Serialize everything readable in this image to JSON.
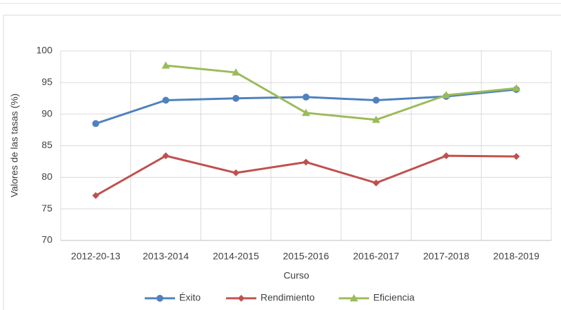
{
  "chart_data": {
    "type": "line",
    "xlabel": "Curso",
    "ylabel": "Valores de las tasas (%)",
    "categories": [
      "2012-20-13",
      "2013-2014",
      "2014-2015",
      "2015-2016",
      "2016-2017",
      "2017-2018",
      "2018-2019"
    ],
    "series": [
      {
        "name": "Éxito",
        "color": "#4f81bd",
        "marker": "circle",
        "values": [
          88.5,
          92.2,
          92.5,
          92.7,
          92.2,
          92.8,
          93.9
        ]
      },
      {
        "name": "Rendimiento",
        "color": "#c0504d",
        "marker": "diamond",
        "values": [
          77.1,
          83.4,
          80.7,
          82.4,
          79.1,
          83.4,
          83.3
        ]
      },
      {
        "name": "Eficiencia",
        "color": "#9bbb59",
        "marker": "triangle",
        "values": [
          null,
          97.7,
          96.6,
          90.2,
          89.1,
          93.0,
          94.1
        ]
      }
    ],
    "ylim": [
      70,
      100
    ],
    "yticks": [
      70,
      75,
      80,
      85,
      90,
      95,
      100
    ],
    "grid": true,
    "legend": "bottom"
  }
}
